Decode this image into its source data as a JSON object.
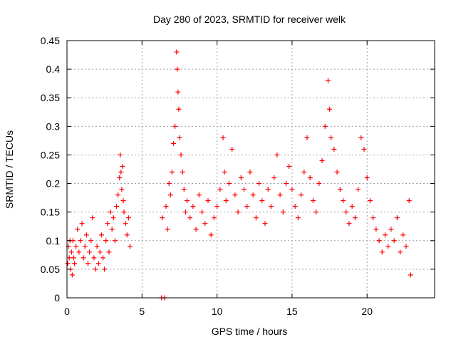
{
  "chart_data": {
    "type": "scatter",
    "title": "Day 280 of 2023, SRMTID for receiver welk",
    "xlabel": "GPS time / hours",
    "ylabel": "SRMTID / TECUs",
    "xlim": [
      0,
      24.5
    ],
    "ylim": [
      0,
      0.45
    ],
    "xticks": [
      0,
      5,
      10,
      15,
      20
    ],
    "xtick_labels": [
      "0",
      "5",
      "10",
      "15",
      "20"
    ],
    "yticks": [
      0,
      0.05,
      0.1,
      0.15,
      0.2,
      0.25,
      0.3,
      0.35,
      0.4,
      0.45
    ],
    "ytick_labels": [
      "0",
      "0.05",
      "0.1",
      "0.15",
      "0.2",
      "0.25",
      "0.3",
      "0.35",
      "0.4",
      "0.45"
    ],
    "grid": true,
    "marker": "plus",
    "color": "#ff0000",
    "series": [
      {
        "name": "SRMTID",
        "points": [
          [
            0.05,
            0.06
          ],
          [
            0.1,
            0.09
          ],
          [
            0.15,
            0.07
          ],
          [
            0.2,
            0.1
          ],
          [
            0.25,
            0.05
          ],
          [
            0.3,
            0.08
          ],
          [
            0.35,
            0.04
          ],
          [
            0.4,
            0.1
          ],
          [
            0.45,
            0.07
          ],
          [
            0.5,
            0.06
          ],
          [
            0.6,
            0.09
          ],
          [
            0.7,
            0.12
          ],
          [
            0.8,
            0.08
          ],
          [
            0.9,
            0.1
          ],
          [
            1.0,
            0.13
          ],
          [
            1.1,
            0.07
          ],
          [
            1.2,
            0.09
          ],
          [
            1.3,
            0.11
          ],
          [
            1.4,
            0.06
          ],
          [
            1.5,
            0.08
          ],
          [
            1.6,
            0.1
          ],
          [
            1.7,
            0.14
          ],
          [
            1.8,
            0.07
          ],
          [
            1.9,
            0.05
          ],
          [
            2.0,
            0.09
          ],
          [
            2.1,
            0.06
          ],
          [
            2.2,
            0.08
          ],
          [
            2.3,
            0.11
          ],
          [
            2.4,
            0.07
          ],
          [
            2.5,
            0.05
          ],
          [
            2.6,
            0.1
          ],
          [
            2.7,
            0.13
          ],
          [
            2.8,
            0.08
          ],
          [
            2.9,
            0.15
          ],
          [
            3.0,
            0.12
          ],
          [
            3.1,
            0.14
          ],
          [
            3.2,
            0.1
          ],
          [
            3.3,
            0.16
          ],
          [
            3.4,
            0.18
          ],
          [
            3.5,
            0.21
          ],
          [
            3.55,
            0.25
          ],
          [
            3.6,
            0.22
          ],
          [
            3.65,
            0.19
          ],
          [
            3.7,
            0.23
          ],
          [
            3.75,
            0.17
          ],
          [
            3.8,
            0.15
          ],
          [
            3.9,
            0.13
          ],
          [
            4.0,
            0.11
          ],
          [
            4.1,
            0.14
          ],
          [
            4.2,
            0.09
          ],
          [
            6.3,
            0.0
          ],
          [
            6.5,
            0.0
          ],
          [
            6.35,
            0.14
          ],
          [
            6.6,
            0.16
          ],
          [
            6.7,
            0.12
          ],
          [
            6.8,
            0.2
          ],
          [
            6.9,
            0.18
          ],
          [
            7.0,
            0.22
          ],
          [
            7.1,
            0.27
          ],
          [
            7.2,
            0.3
          ],
          [
            7.3,
            0.43
          ],
          [
            7.35,
            0.4
          ],
          [
            7.4,
            0.36
          ],
          [
            7.45,
            0.33
          ],
          [
            7.5,
            0.28
          ],
          [
            7.6,
            0.25
          ],
          [
            7.7,
            0.22
          ],
          [
            7.8,
            0.19
          ],
          [
            7.9,
            0.15
          ],
          [
            8.0,
            0.17
          ],
          [
            8.2,
            0.14
          ],
          [
            8.4,
            0.16
          ],
          [
            8.6,
            0.12
          ],
          [
            8.8,
            0.18
          ],
          [
            9.0,
            0.15
          ],
          [
            9.2,
            0.13
          ],
          [
            9.4,
            0.17
          ],
          [
            9.6,
            0.11
          ],
          [
            9.8,
            0.14
          ],
          [
            10.0,
            0.16
          ],
          [
            10.2,
            0.19
          ],
          [
            10.4,
            0.28
          ],
          [
            10.5,
            0.22
          ],
          [
            10.6,
            0.17
          ],
          [
            10.8,
            0.2
          ],
          [
            11.0,
            0.26
          ],
          [
            11.2,
            0.18
          ],
          [
            11.4,
            0.15
          ],
          [
            11.6,
            0.21
          ],
          [
            11.8,
            0.19
          ],
          [
            12.0,
            0.16
          ],
          [
            12.2,
            0.22
          ],
          [
            12.4,
            0.18
          ],
          [
            12.6,
            0.14
          ],
          [
            12.8,
            0.2
          ],
          [
            13.0,
            0.17
          ],
          [
            13.2,
            0.13
          ],
          [
            13.4,
            0.19
          ],
          [
            13.6,
            0.16
          ],
          [
            13.8,
            0.21
          ],
          [
            14.0,
            0.25
          ],
          [
            14.2,
            0.18
          ],
          [
            14.4,
            0.15
          ],
          [
            14.6,
            0.2
          ],
          [
            14.8,
            0.23
          ],
          [
            15.0,
            0.19
          ],
          [
            15.2,
            0.16
          ],
          [
            15.4,
            0.14
          ],
          [
            15.6,
            0.18
          ],
          [
            15.8,
            0.22
          ],
          [
            16.0,
            0.28
          ],
          [
            16.2,
            0.21
          ],
          [
            16.4,
            0.17
          ],
          [
            16.6,
            0.15
          ],
          [
            16.8,
            0.2
          ],
          [
            17.0,
            0.24
          ],
          [
            17.2,
            0.3
          ],
          [
            17.4,
            0.38
          ],
          [
            17.5,
            0.33
          ],
          [
            17.6,
            0.28
          ],
          [
            17.8,
            0.26
          ],
          [
            18.0,
            0.22
          ],
          [
            18.2,
            0.19
          ],
          [
            18.4,
            0.17
          ],
          [
            18.6,
            0.15
          ],
          [
            18.8,
            0.13
          ],
          [
            19.0,
            0.16
          ],
          [
            19.2,
            0.14
          ],
          [
            19.4,
            0.19
          ],
          [
            19.6,
            0.28
          ],
          [
            19.8,
            0.26
          ],
          [
            20.0,
            0.21
          ],
          [
            20.2,
            0.17
          ],
          [
            20.4,
            0.14
          ],
          [
            20.6,
            0.12
          ],
          [
            20.8,
            0.1
          ],
          [
            21.0,
            0.08
          ],
          [
            21.2,
            0.11
          ],
          [
            21.4,
            0.09
          ],
          [
            21.6,
            0.12
          ],
          [
            21.8,
            0.1
          ],
          [
            22.0,
            0.14
          ],
          [
            22.2,
            0.08
          ],
          [
            22.4,
            0.11
          ],
          [
            22.6,
            0.09
          ],
          [
            22.8,
            0.17
          ],
          [
            22.9,
            0.04
          ]
        ]
      }
    ]
  }
}
